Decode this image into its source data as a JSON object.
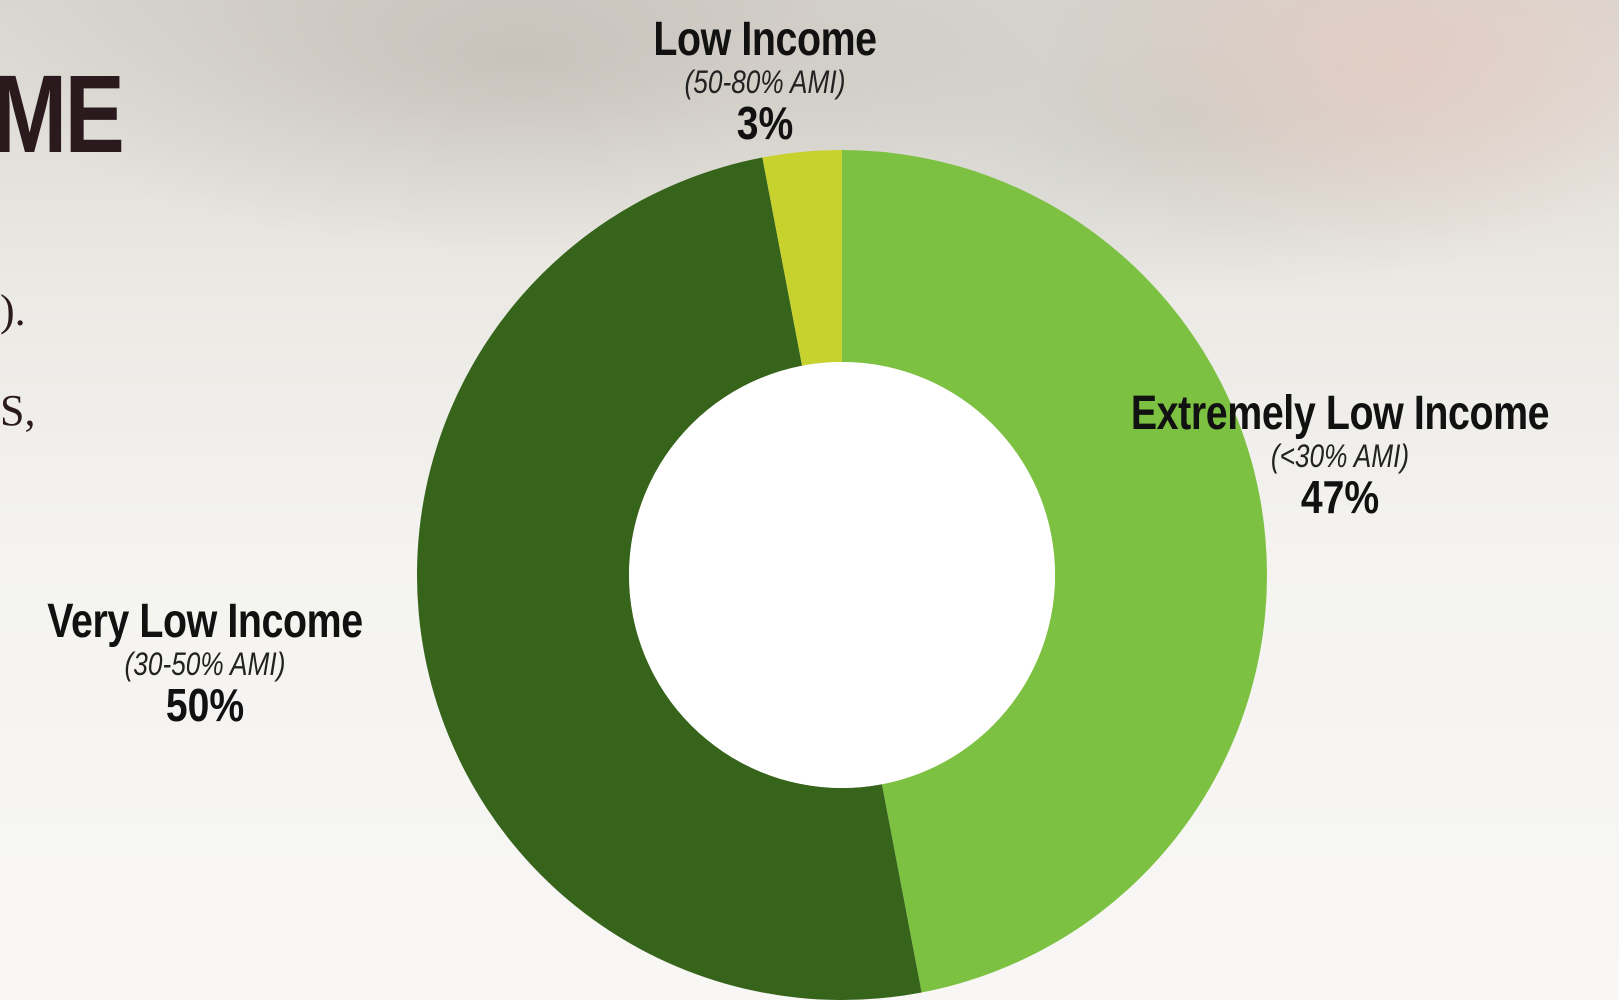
{
  "slide": {
    "heading_fragment": "ME",
    "text_fragment_1": ").",
    "text_fragment_2": "S,"
  },
  "chart_data": {
    "type": "pie",
    "donut": true,
    "title": "",
    "slices": [
      {
        "name": "Extremely Low Income",
        "range": "(<30% AMI)",
        "value": 47,
        "label": "47%",
        "color": "#7cc142"
      },
      {
        "name": "Very Low Income",
        "range": "(30-50% AMI)",
        "value": 50,
        "label": "50%",
        "color": "#36641b"
      },
      {
        "name": "Low Income",
        "range": "(50-80% AMI)",
        "value": 3,
        "label": "3%",
        "color": "#c7d22f"
      }
    ]
  }
}
